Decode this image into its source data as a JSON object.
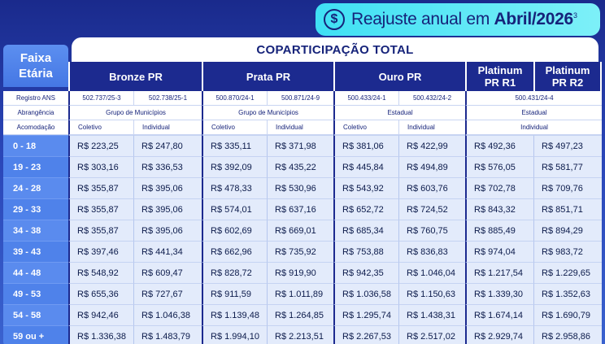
{
  "badge": {
    "currency_symbol": "$",
    "text_prefix": "Reajuste anual em ",
    "text_bold": "Abril/2026",
    "superscript": "3"
  },
  "faixa_label": "Faixa Etária",
  "table_title": "COPARTICIPAÇÃO TOTAL",
  "plans": [
    {
      "name": "Bronze PR"
    },
    {
      "name": "Prata PR"
    },
    {
      "name": "Ouro PR"
    },
    {
      "name": "Platinum PR R1"
    },
    {
      "name": "Platinum PR R2"
    }
  ],
  "info": {
    "registro_label": "Registro ANS",
    "registros": [
      "502.737/25-3",
      "502.738/25-1",
      "500.870/24-1",
      "500.871/24-9",
      "500.433/24-1",
      "500.432/24-2",
      "500.431/24-4"
    ],
    "abrangencia_label": "Abrangência",
    "abrangencias": [
      "Grupo de Municípios",
      "Grupo de Municípios",
      "Estadual",
      "Estadual"
    ],
    "acomodacao_label": "Acomodação",
    "acomodacoes": [
      "Coletivo",
      "Individual",
      "Coletivo",
      "Individual",
      "Coletivo",
      "Individual",
      "Individual"
    ]
  },
  "rows": [
    {
      "age": "0 - 18",
      "v": [
        "R$ 223,25",
        "R$ 247,80",
        "R$ 335,11",
        "R$ 371,98",
        "R$ 381,06",
        "R$ 422,99",
        "R$ 492,36",
        "R$ 497,23"
      ]
    },
    {
      "age": "19 - 23",
      "v": [
        "R$ 303,16",
        "R$ 336,53",
        "R$ 392,09",
        "R$ 435,22",
        "R$ 445,84",
        "R$ 494,89",
        "R$ 576,05",
        "R$ 581,77"
      ]
    },
    {
      "age": "24 - 28",
      "v": [
        "R$ 355,87",
        "R$ 395,06",
        "R$ 478,33",
        "R$ 530,96",
        "R$ 543,92",
        "R$ 603,76",
        "R$ 702,78",
        "R$ 709,76"
      ]
    },
    {
      "age": "29 - 33",
      "v": [
        "R$ 355,87",
        "R$ 395,06",
        "R$ 574,01",
        "R$ 637,16",
        "R$ 652,72",
        "R$ 724,52",
        "R$ 843,32",
        "R$ 851,71"
      ]
    },
    {
      "age": "34 - 38",
      "v": [
        "R$ 355,87",
        "R$ 395,06",
        "R$ 602,69",
        "R$ 669,01",
        "R$ 685,34",
        "R$ 760,75",
        "R$ 885,49",
        "R$ 894,29"
      ]
    },
    {
      "age": "39 - 43",
      "v": [
        "R$ 397,46",
        "R$ 441,34",
        "R$ 662,96",
        "R$ 735,92",
        "R$ 753,88",
        "R$ 836,83",
        "R$ 974,04",
        "R$ 983,72"
      ]
    },
    {
      "age": "44 - 48",
      "v": [
        "R$ 548,92",
        "R$ 609,47",
        "R$ 828,72",
        "R$ 919,90",
        "R$ 942,35",
        "R$ 1.046,04",
        "R$ 1.217,54",
        "R$ 1.229,65"
      ]
    },
    {
      "age": "49 - 53",
      "v": [
        "R$ 655,36",
        "R$ 727,67",
        "R$ 911,59",
        "R$ 1.011,89",
        "R$ 1.036,58",
        "R$ 1.150,63",
        "R$ 1.339,30",
        "R$ 1.352,63"
      ]
    },
    {
      "age": "54 - 58",
      "v": [
        "R$ 942,46",
        "R$ 1.046,38",
        "R$ 1.139,48",
        "R$ 1.264,85",
        "R$ 1.295,74",
        "R$ 1.438,31",
        "R$ 1.674,14",
        "R$ 1.690,79"
      ]
    },
    {
      "age": "59 ou +",
      "v": [
        "R$ 1.336,38",
        "R$ 1.483,79",
        "R$ 1.994,10",
        "R$ 2.213,51",
        "R$ 2.267,53",
        "R$ 2.517,02",
        "R$ 2.929,74",
        "R$ 2.958,86"
      ]
    }
  ]
}
